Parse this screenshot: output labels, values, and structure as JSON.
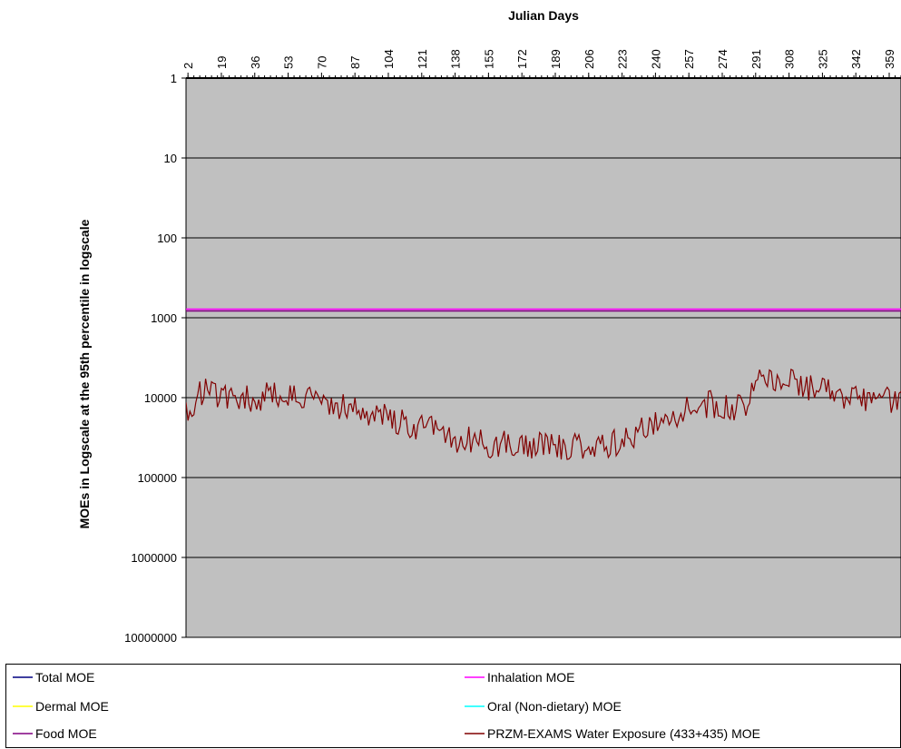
{
  "chart_data": {
    "type": "line",
    "title": "",
    "xlabel": "Julian Days",
    "ylabel": "MOEs in Logscale at the 95th percentile in logscale",
    "x_axis_position": "top",
    "y_scale": "log",
    "y_reversed": true,
    "ylim": [
      1,
      10000000
    ],
    "xlim": [
      1,
      365
    ],
    "y_ticks": [
      "1",
      "10",
      "100",
      "1000",
      "10000",
      "100000",
      "1000000",
      "10000000"
    ],
    "x_ticks": [
      "2",
      "19",
      "36",
      "53",
      "70",
      "87",
      "104",
      "121",
      "138",
      "155",
      "172",
      "189",
      "206",
      "223",
      "240",
      "257",
      "274",
      "291",
      "308",
      "325",
      "342",
      "359"
    ],
    "grid": "horizontal",
    "legend_position": "bottom",
    "colors": {
      "plot_background": "#c0c0c0",
      "gridline": "#000000"
    },
    "series": [
      {
        "name": "Total MOE",
        "color": "#000080",
        "values": []
      },
      {
        "name": "Dermal MOE",
        "color": "#ffff00",
        "values": []
      },
      {
        "name": "Food MOE",
        "color": "#800080",
        "constant": 800
      },
      {
        "name": "Inhalation MOE",
        "color": "#ff00ff",
        "constant": 800
      },
      {
        "name": "Oral (Non-dietary) MOE",
        "color": "#00ffff",
        "values": []
      },
      {
        "name": "PRZM-EXAMS Water Exposure (433+435) MOE",
        "color": "#800000",
        "x": [
          1,
          10,
          19,
          28,
          36,
          44,
          53,
          62,
          70,
          78,
          87,
          96,
          104,
          112,
          121,
          130,
          138,
          146,
          155,
          164,
          172,
          180,
          189,
          198,
          206,
          214,
          223,
          232,
          240,
          248,
          257,
          262,
          266,
          274,
          282,
          286,
          291,
          300,
          308,
          316,
          325,
          334,
          342,
          350,
          359,
          365
        ],
        "values": [
          15000,
          8000,
          9500,
          10000,
          10500,
          9000,
          10000,
          9500,
          11000,
          13000,
          14000,
          16000,
          17000,
          21000,
          24000,
          27000,
          33000,
          34000,
          38000,
          39000,
          38000,
          40000,
          41000,
          40000,
          39000,
          40000,
          36000,
          26000,
          22000,
          18000,
          14000,
          14000,
          12000,
          12500,
          13000,
          13000,
          4500,
          6000,
          6500,
          7500,
          8000,
          9000,
          10000,
          11000,
          10500,
          10000
        ]
      }
    ]
  }
}
